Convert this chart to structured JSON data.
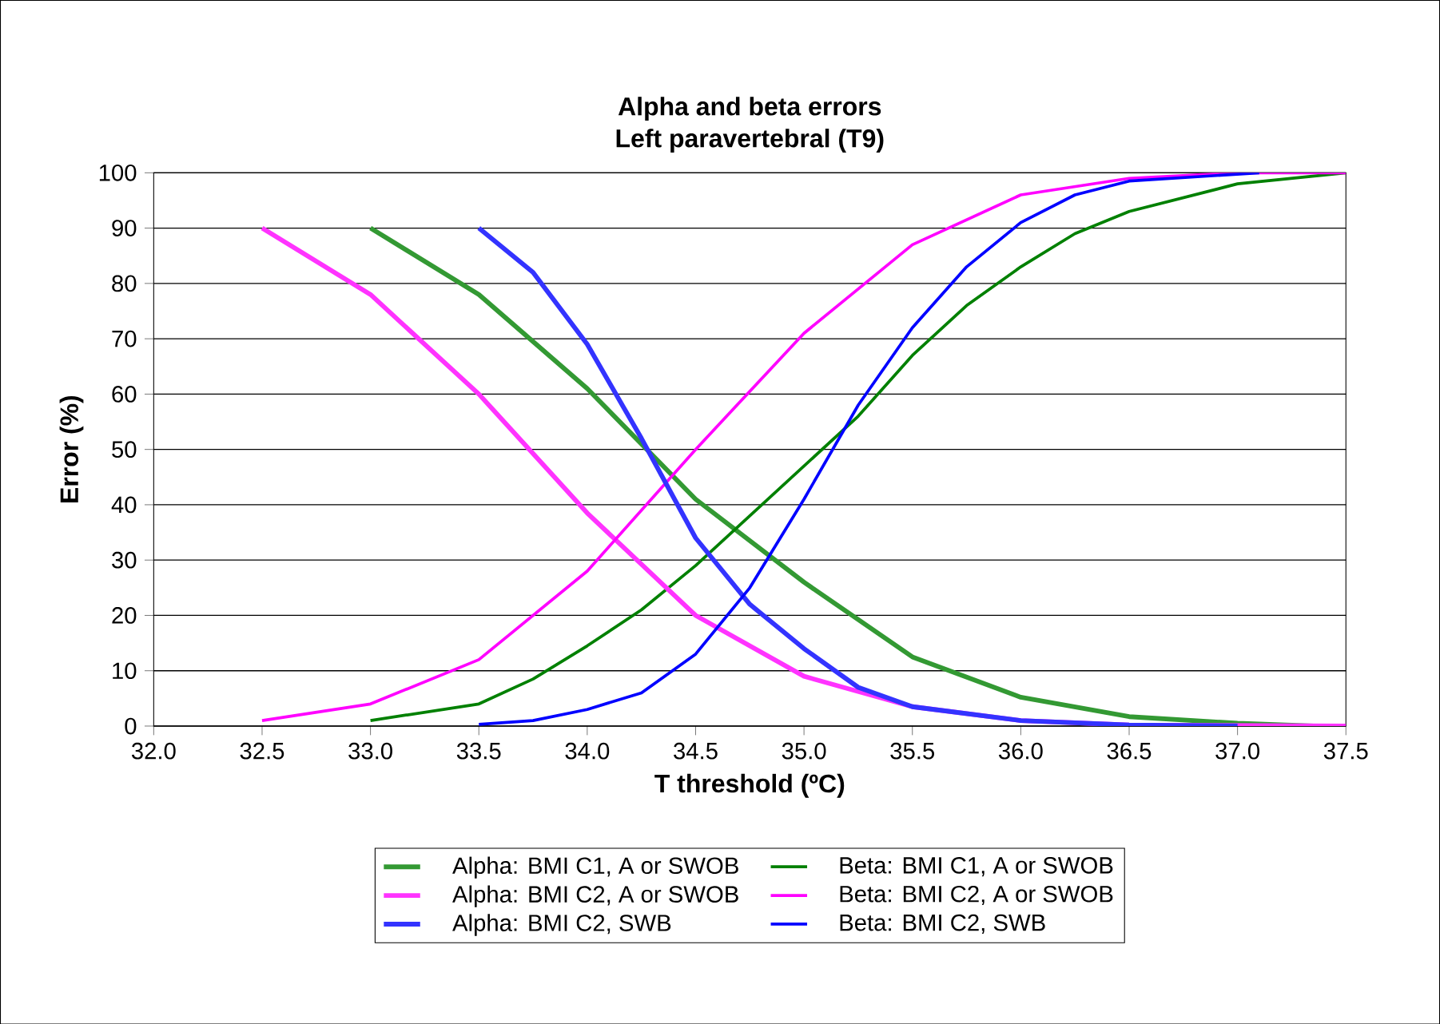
{
  "chart_data": {
    "type": "line",
    "title": "Alpha and beta errors",
    "subtitle": "Left paravertebral (T9)",
    "xlabel": "T threshold (ºC)",
    "ylabel": "Error (%)",
    "xlim": [
      32.0,
      37.5
    ],
    "ylim": [
      0,
      100
    ],
    "xticks": [
      {
        "value": 32.0,
        "label": "32.0"
      },
      {
        "value": 32.5,
        "label": "32.5"
      },
      {
        "value": 33.0,
        "label": "33.0"
      },
      {
        "value": 33.5,
        "label": "33.5"
      },
      {
        "value": 34.0,
        "label": "34.0"
      },
      {
        "value": 34.5,
        "label": "34.5"
      },
      {
        "value": 35.0,
        "label": "35.0"
      },
      {
        "value": 35.5,
        "label": "35.5"
      },
      {
        "value": 36.0,
        "label": "36.0"
      },
      {
        "value": 36.5,
        "label": "36.5"
      },
      {
        "value": 37.0,
        "label": "37.0"
      },
      {
        "value": 37.5,
        "label": "37.5"
      }
    ],
    "yticks": [
      0,
      10,
      20,
      30,
      40,
      50,
      60,
      70,
      80,
      90,
      100
    ],
    "grid": "y",
    "legend": "bottom",
    "marker": "none",
    "series": [
      {
        "name": "Alpha: BMI C1, A or SWOB",
        "color": "#339933",
        "x": [
          33.0,
          33.5,
          34.0,
          34.5,
          35.0,
          35.5,
          36.0,
          36.5,
          37.0,
          37.35
        ],
        "values": [
          90,
          78,
          61,
          41,
          26,
          12.5,
          5.2,
          1.7,
          0.5,
          0
        ]
      },
      {
        "name": "Beta: BMI C1, A or SWOB",
        "color": "#008000",
        "x": [
          33.0,
          33.5,
          33.75,
          34.0,
          34.25,
          34.5,
          34.75,
          35.0,
          35.25,
          35.5,
          35.75,
          36.0,
          36.25,
          36.5,
          37.0,
          37.5
        ],
        "values": [
          1,
          4,
          8.5,
          14.5,
          21,
          29,
          38,
          47,
          56,
          67,
          76,
          83,
          89,
          93,
          98,
          100
        ]
      },
      {
        "name": "Alpha: BMI C2, A or SWOB",
        "color": "#ff33ff",
        "x": [
          32.5,
          33.0,
          33.5,
          34.0,
          34.5,
          35.0,
          35.5,
          36.0,
          36.5,
          37.5
        ],
        "values": [
          90,
          78,
          60,
          38.5,
          20,
          9,
          3.5,
          1,
          0.2,
          0
        ]
      },
      {
        "name": "Beta: BMI C2, A or SWOB",
        "color": "#ff00ff",
        "x": [
          32.5,
          33.0,
          33.5,
          34.0,
          34.5,
          35.0,
          35.5,
          36.0,
          36.5,
          37.0,
          37.5
        ],
        "values": [
          1,
          4,
          12,
          28,
          50,
          71,
          87,
          96,
          99,
          100,
          100
        ]
      },
      {
        "name": "Alpha: BMI C2, SWB",
        "color": "#3333ff",
        "x": [
          33.5,
          33.75,
          34.0,
          34.25,
          34.5,
          34.75,
          35.0,
          35.25,
          35.5,
          36.0,
          36.5,
          37.0
        ],
        "values": [
          90,
          82,
          69,
          52,
          34,
          22,
          14,
          7,
          3.5,
          1,
          0.2,
          0
        ]
      },
      {
        "name": "Beta: BMI C2, SWB",
        "color": "#0000ff",
        "x": [
          33.5,
          33.75,
          34.0,
          34.25,
          34.5,
          34.75,
          35.0,
          35.25,
          35.5,
          35.75,
          36.0,
          36.25,
          36.5,
          37.1
        ],
        "values": [
          0.3,
          1,
          3,
          6,
          13,
          25,
          41,
          58,
          72,
          83,
          91,
          96,
          98.5,
          100
        ]
      }
    ]
  }
}
